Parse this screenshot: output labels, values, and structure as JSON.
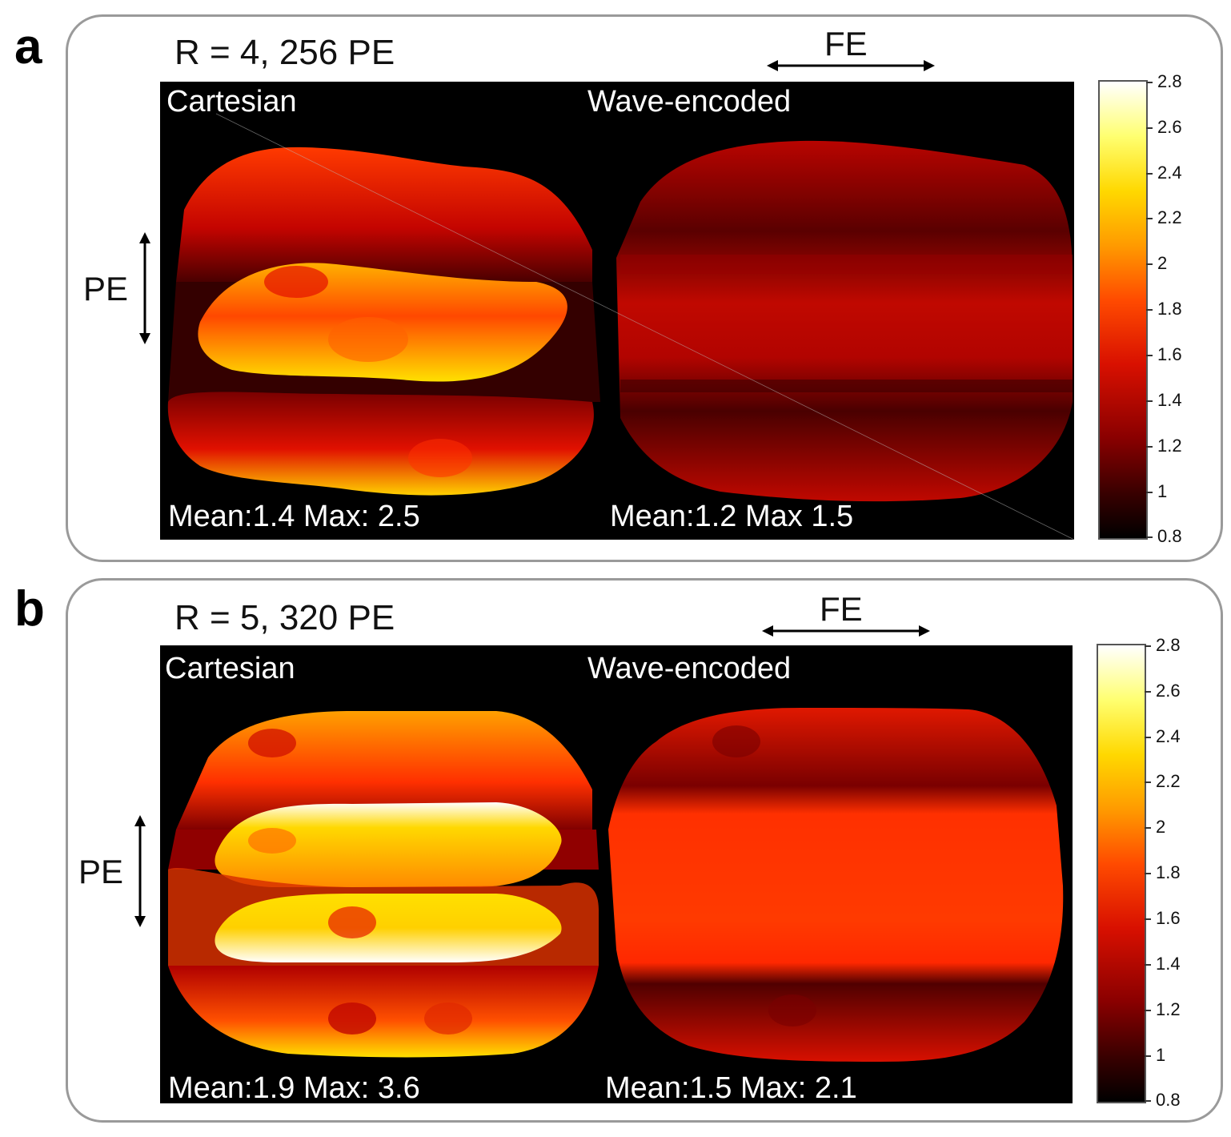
{
  "panels": [
    {
      "letter": "a",
      "title": "R = 4, 256 PE",
      "fe_label": "FE",
      "pe_label": "PE",
      "left_label": "Cartesian",
      "right_label": "Wave-encoded",
      "left_stats": "Mean:1.4 Max: 2.5",
      "right_stats": "Mean:1.2 Max 1.5"
    },
    {
      "letter": "b",
      "title": "R = 5, 320 PE",
      "fe_label": "FE",
      "pe_label": "PE",
      "left_label": "Cartesian",
      "right_label": "Wave-encoded",
      "left_stats": "Mean:1.9 Max: 3.6",
      "right_stats": "Mean:1.5 Max: 2.1"
    }
  ],
  "chart_data": [
    {
      "type": "heatmap",
      "title": "R = 4, 256 PE",
      "subplots": [
        {
          "name": "Cartesian",
          "mean": 1.4,
          "max": 2.5
        },
        {
          "name": "Wave-encoded",
          "mean": 1.2,
          "max": 1.5
        }
      ],
      "colorbar": {
        "min": 0.8,
        "max": 2.8,
        "ticks": [
          "2.8",
          "2.6",
          "2.4",
          "2.2",
          "2",
          "1.8",
          "1.6",
          "1.4",
          "1.2",
          "1",
          "0.8"
        ],
        "colormap": "hot"
      }
    },
    {
      "type": "heatmap",
      "title": "R = 5, 320 PE",
      "subplots": [
        {
          "name": "Cartesian",
          "mean": 1.9,
          "max": 3.6
        },
        {
          "name": "Wave-encoded",
          "mean": 1.5,
          "max": 2.1
        }
      ],
      "colorbar": {
        "min": 0.8,
        "max": 2.8,
        "ticks": [
          "2.8",
          "2.6",
          "2.4",
          "2.2",
          "2",
          "1.8",
          "1.6",
          "1.4",
          "1.2",
          "1",
          "0.8"
        ],
        "colormap": "hot"
      }
    }
  ],
  "colors": {
    "frame": "#9a9a9a",
    "map_background": "#000000"
  }
}
